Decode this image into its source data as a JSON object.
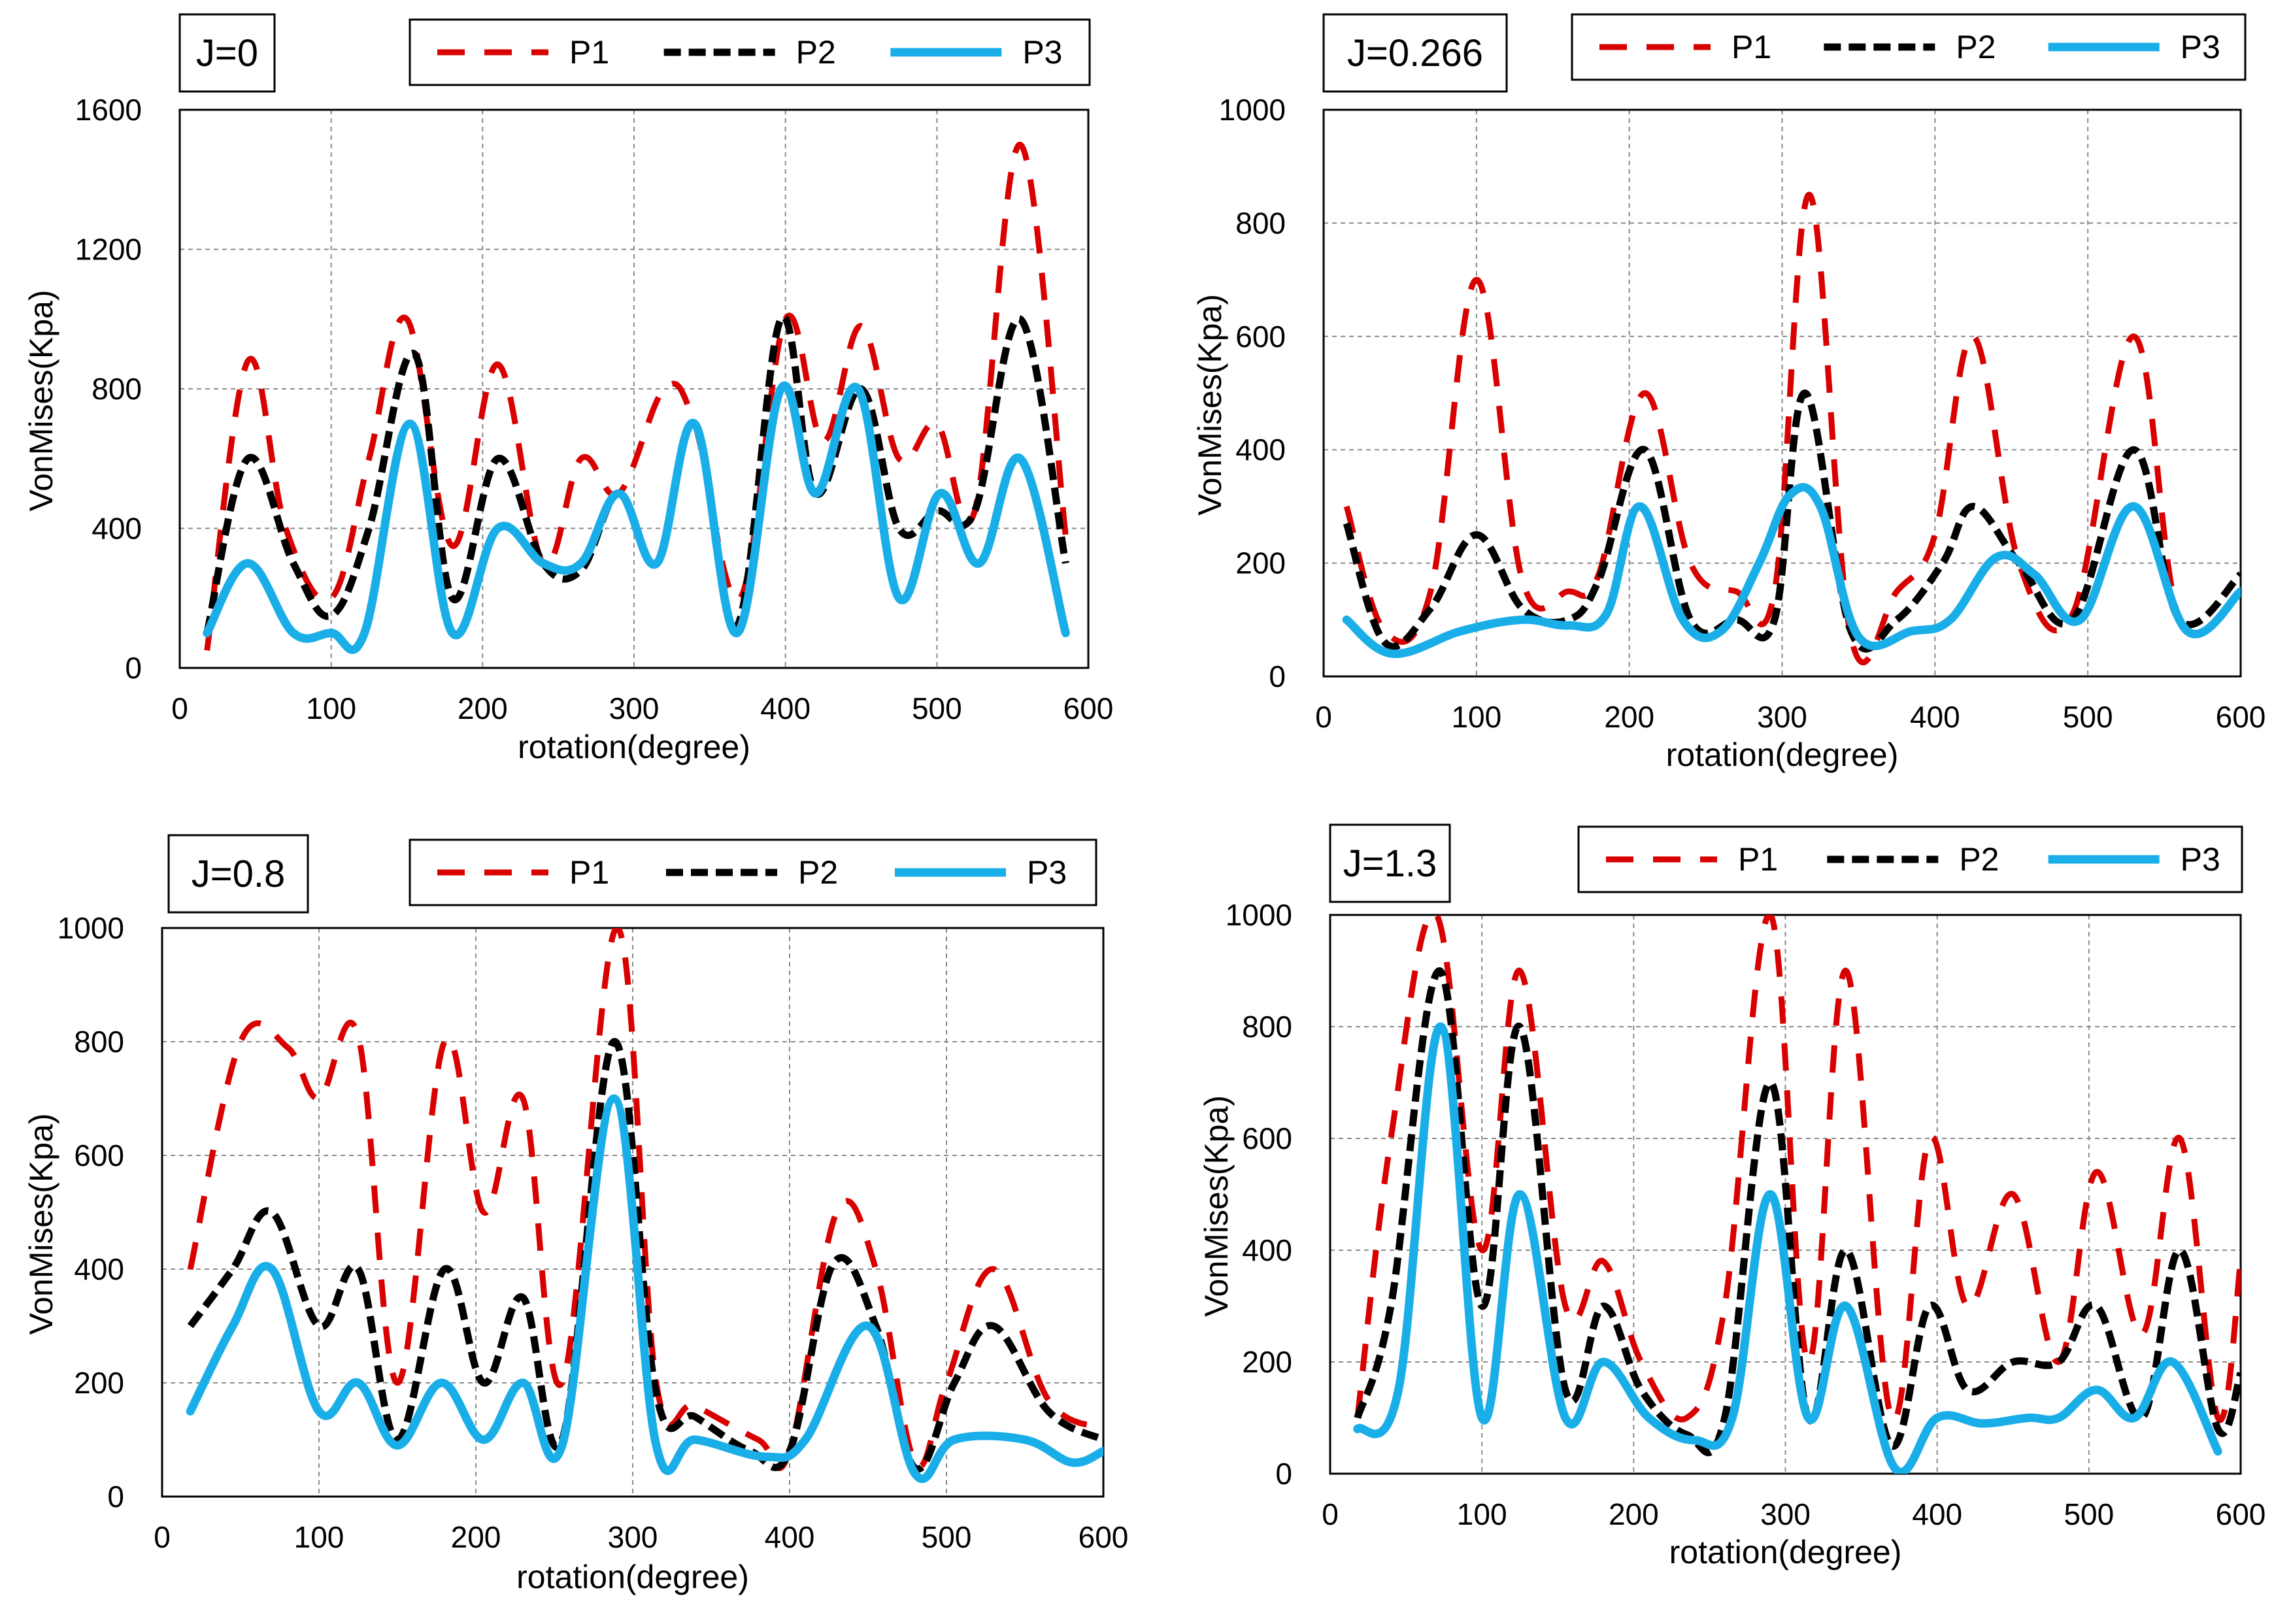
{
  "colors": {
    "P1": "#d90000",
    "P2": "#000000",
    "P3": "#1aaee8"
  },
  "chart_data": [
    {
      "type": "line",
      "label": "J=0",
      "xlabel": "rotation(degree)",
      "ylabel": "VonMises(Kpa)",
      "xlim": [
        0,
        600
      ],
      "ylim": [
        0,
        1600
      ],
      "xticks": [
        0,
        100,
        200,
        300,
        400,
        500,
        600
      ],
      "yticks": [
        0,
        400,
        800,
        1200,
        1600
      ],
      "grid": true,
      "legend": "top",
      "series": [
        {
          "name": "P1",
          "x": [
            18,
            45,
            70,
            100,
            125,
            150,
            180,
            210,
            240,
            265,
            290,
            320,
            340,
            370,
            400,
            425,
            450,
            475,
            500,
            525,
            555,
            585
          ],
          "y": [
            50,
            880,
            400,
            200,
            600,
            1000,
            350,
            870,
            300,
            600,
            500,
            800,
            700,
            200,
            1000,
            650,
            980,
            600,
            700,
            450,
            1500,
            380
          ]
        },
        {
          "name": "P2",
          "x": [
            18,
            45,
            75,
            100,
            125,
            155,
            180,
            210,
            240,
            265,
            290,
            315,
            340,
            368,
            397,
            420,
            450,
            475,
            500,
            525,
            555,
            585
          ],
          "y": [
            100,
            600,
            300,
            150,
            400,
            900,
            200,
            600,
            300,
            280,
            500,
            300,
            700,
            120,
            1000,
            500,
            800,
            400,
            450,
            450,
            1000,
            300
          ]
        },
        {
          "name": "P3",
          "x": [
            18,
            45,
            75,
            100,
            122,
            152,
            180,
            210,
            240,
            265,
            290,
            315,
            340,
            368,
            397,
            420,
            448,
            475,
            502,
            528,
            555,
            585
          ],
          "y": [
            100,
            300,
            100,
            100,
            100,
            700,
            100,
            400,
            300,
            300,
            500,
            300,
            700,
            100,
            800,
            500,
            800,
            200,
            500,
            300,
            600,
            100
          ]
        }
      ]
    },
    {
      "type": "line",
      "label": "J=0.266",
      "xlabel": "rotation(degree)",
      "ylabel": "VonMises(Kpa)",
      "xlim": [
        0,
        600
      ],
      "ylim": [
        0,
        1000
      ],
      "xticks": [
        0,
        100,
        200,
        300,
        400,
        500,
        600
      ],
      "yticks": [
        0,
        200,
        400,
        600,
        800,
        1000
      ],
      "grid": true,
      "legend": "top",
      "series": [
        {
          "name": "P1",
          "x": [
            15,
            40,
            70,
            100,
            130,
            160,
            180,
            210,
            240,
            270,
            295,
            318,
            345,
            375,
            400,
            425,
            455,
            490,
            530,
            560,
            600
          ],
          "y": [
            300,
            80,
            150,
            700,
            170,
            150,
            180,
            500,
            200,
            150,
            150,
            850,
            70,
            150,
            250,
            600,
            200,
            110,
            600,
            100,
            150
          ]
        },
        {
          "name": "P2",
          "x": [
            15,
            40,
            70,
            100,
            130,
            160,
            180,
            210,
            240,
            270,
            295,
            315,
            345,
            375,
            405,
            425,
            455,
            490,
            530,
            560,
            600
          ],
          "y": [
            270,
            60,
            120,
            250,
            120,
            100,
            170,
            400,
            100,
            100,
            100,
            500,
            80,
            100,
            200,
            300,
            200,
            100,
            400,
            100,
            180
          ]
        },
        {
          "name": "P3",
          "x": [
            15,
            45,
            90,
            130,
            160,
            185,
            207,
            235,
            260,
            285,
            305,
            325,
            350,
            385,
            410,
            440,
            465,
            495,
            530,
            565,
            600
          ],
          "y": [
            100,
            40,
            80,
            100,
            90,
            110,
            300,
            100,
            80,
            200,
            320,
            300,
            70,
            80,
            100,
            210,
            180,
            100,
            300,
            80,
            150
          ]
        }
      ]
    },
    {
      "type": "line",
      "label": "J=0.8",
      "xlabel": "rotation(degree)",
      "ylabel": "VonMises(Kpa)",
      "xlim": [
        0,
        600
      ],
      "ylim": [
        0,
        1000
      ],
      "xticks": [
        0,
        100,
        200,
        300,
        400,
        500,
        600
      ],
      "yticks": [
        0,
        200,
        400,
        600,
        800,
        1000
      ],
      "grid": true,
      "legend": "top",
      "series": [
        {
          "name": "P1",
          "x": [
            18,
            50,
            80,
            100,
            125,
            150,
            180,
            205,
            230,
            255,
            290,
            315,
            340,
            380,
            400,
            430,
            455,
            480,
            500,
            530,
            565,
            600
          ],
          "y": [
            400,
            800,
            790,
            700,
            810,
            200,
            800,
            500,
            700,
            200,
            1000,
            200,
            160,
            100,
            80,
            500,
            400,
            60,
            200,
            400,
            170,
            120
          ]
        },
        {
          "name": "P2",
          "x": [
            18,
            45,
            70,
            100,
            125,
            150,
            180,
            205,
            230,
            255,
            288,
            315,
            340,
            375,
            400,
            428,
            455,
            480,
            505,
            530,
            565,
            600
          ],
          "y": [
            300,
            400,
            500,
            300,
            400,
            100,
            400,
            200,
            350,
            100,
            800,
            180,
            140,
            80,
            80,
            410,
            300,
            50,
            200,
            300,
            150,
            100
          ]
        },
        {
          "name": "P3",
          "x": [
            18,
            45,
            70,
            100,
            125,
            150,
            178,
            205,
            230,
            255,
            288,
            315,
            340,
            385,
            410,
            450,
            480,
            505,
            550,
            580,
            600
          ],
          "y": [
            150,
            300,
            400,
            150,
            200,
            90,
            200,
            100,
            200,
            90,
            700,
            90,
            100,
            70,
            100,
            300,
            40,
            100,
            100,
            60,
            80
          ]
        }
      ]
    },
    {
      "type": "line",
      "label": "J=1.3",
      "xlabel": "rotation(degree)",
      "ylabel": "VonMises(Kpa)",
      "xlim": [
        0,
        600
      ],
      "ylim": [
        0,
        1000
      ],
      "xticks": [
        0,
        100,
        200,
        300,
        400,
        500,
        600
      ],
      "yticks": [
        0,
        200,
        400,
        600,
        800,
        1000
      ],
      "grid": true,
      "legend": "top",
      "series": [
        {
          "name": "P1",
          "x": [
            18,
            40,
            70,
            100,
            125,
            155,
            180,
            205,
            235,
            260,
            290,
            315,
            340,
            370,
            395,
            420,
            450,
            480,
            505,
            535,
            560,
            585,
            600
          ],
          "y": [
            100,
            600,
            1000,
            400,
            900,
            300,
            380,
            200,
            100,
            300,
            1000,
            200,
            900,
            100,
            600,
            300,
            500,
            200,
            540,
            250,
            600,
            100,
            380
          ]
        },
        {
          "name": "P2",
          "x": [
            18,
            40,
            72,
            100,
            125,
            155,
            180,
            205,
            235,
            260,
            290,
            315,
            340,
            370,
            395,
            420,
            450,
            480,
            505,
            535,
            560,
            585,
            600
          ],
          "y": [
            100,
            300,
            900,
            300,
            800,
            150,
            300,
            150,
            70,
            100,
            700,
            100,
            400,
            50,
            300,
            150,
            200,
            200,
            300,
            100,
            400,
            80,
            180
          ]
        },
        {
          "name": "P3",
          "x": [
            18,
            45,
            73,
            100,
            125,
            155,
            180,
            210,
            240,
            265,
            290,
            315,
            340,
            372,
            400,
            430,
            460,
            480,
            505,
            530,
            555,
            585
          ],
          "y": [
            80,
            150,
            800,
            100,
            500,
            100,
            200,
            100,
            60,
            100,
            500,
            100,
            300,
            10,
            100,
            90,
            100,
            100,
            150,
            100,
            200,
            40
          ]
        }
      ]
    }
  ]
}
